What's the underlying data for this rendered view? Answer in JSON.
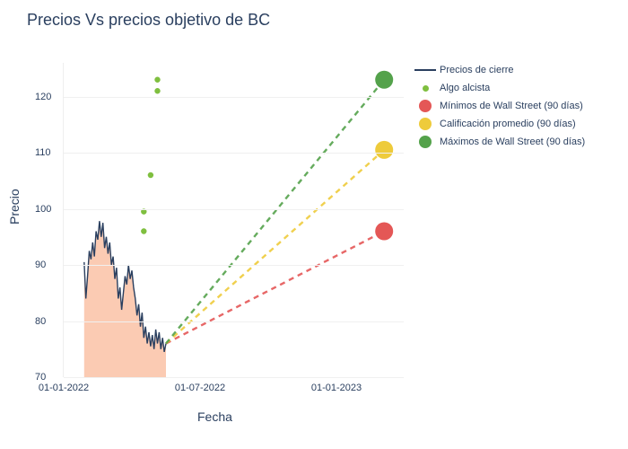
{
  "title": "Precios Vs precios objetivo de BC",
  "ylabel": "Precio",
  "xlabel": "Fecha",
  "chart": {
    "type": "line+scatter+area",
    "ylim": [
      70,
      126
    ],
    "yticks": [
      70,
      80,
      90,
      100,
      110,
      120
    ],
    "xticks": [
      {
        "label": "01-01-2022",
        "t": 0.0
      },
      {
        "label": "01-07-2022",
        "t": 0.4
      },
      {
        "label": "01-01-2023",
        "t": 0.8
      }
    ],
    "colors": {
      "close_line": "#2a3f5f",
      "area_fill": "#f9b99a",
      "area_opacity": 0.75,
      "algo_dot": "#7fbf3f",
      "min_target": "#e45756",
      "avg_target": "#eecb3b",
      "max_target": "#54a24b",
      "dash_opacity": 0.9
    },
    "styling": {
      "close_line_width": 1.4,
      "dash_line_width": 2.4,
      "dash_pattern": "6,5",
      "target_dot_radius": 10,
      "algo_dot_radius": 3.2
    },
    "close_series": [
      {
        "t": 0.06,
        "y": 90.5
      },
      {
        "t": 0.065,
        "y": 84.0
      },
      {
        "t": 0.07,
        "y": 88.0
      },
      {
        "t": 0.075,
        "y": 92.5
      },
      {
        "t": 0.08,
        "y": 91.0
      },
      {
        "t": 0.085,
        "y": 94.0
      },
      {
        "t": 0.09,
        "y": 91.5
      },
      {
        "t": 0.095,
        "y": 96.0
      },
      {
        "t": 0.1,
        "y": 94.5
      },
      {
        "t": 0.105,
        "y": 97.8
      },
      {
        "t": 0.11,
        "y": 95.0
      },
      {
        "t": 0.115,
        "y": 97.5
      },
      {
        "t": 0.12,
        "y": 93.0
      },
      {
        "t": 0.125,
        "y": 95.0
      },
      {
        "t": 0.13,
        "y": 92.0
      },
      {
        "t": 0.135,
        "y": 94.0
      },
      {
        "t": 0.14,
        "y": 90.0
      },
      {
        "t": 0.145,
        "y": 91.5
      },
      {
        "t": 0.15,
        "y": 87.5
      },
      {
        "t": 0.155,
        "y": 89.5
      },
      {
        "t": 0.16,
        "y": 84.0
      },
      {
        "t": 0.165,
        "y": 86.0
      },
      {
        "t": 0.17,
        "y": 82.0
      },
      {
        "t": 0.175,
        "y": 85.0
      },
      {
        "t": 0.18,
        "y": 88.0
      },
      {
        "t": 0.185,
        "y": 86.5
      },
      {
        "t": 0.19,
        "y": 90.0
      },
      {
        "t": 0.195,
        "y": 87.5
      },
      {
        "t": 0.2,
        "y": 89.0
      },
      {
        "t": 0.205,
        "y": 86.0
      },
      {
        "t": 0.21,
        "y": 84.0
      },
      {
        "t": 0.215,
        "y": 81.0
      },
      {
        "t": 0.22,
        "y": 83.0
      },
      {
        "t": 0.225,
        "y": 79.0
      },
      {
        "t": 0.23,
        "y": 81.5
      },
      {
        "t": 0.235,
        "y": 77.0
      },
      {
        "t": 0.24,
        "y": 79.0
      },
      {
        "t": 0.245,
        "y": 76.0
      },
      {
        "t": 0.25,
        "y": 78.0
      },
      {
        "t": 0.255,
        "y": 75.5
      },
      {
        "t": 0.26,
        "y": 77.5
      },
      {
        "t": 0.265,
        "y": 75.0
      },
      {
        "t": 0.27,
        "y": 78.5
      },
      {
        "t": 0.275,
        "y": 76.0
      },
      {
        "t": 0.28,
        "y": 78.0
      },
      {
        "t": 0.285,
        "y": 75.0
      },
      {
        "t": 0.29,
        "y": 77.0
      },
      {
        "t": 0.295,
        "y": 74.5
      },
      {
        "t": 0.3,
        "y": 76.0
      }
    ],
    "algo_points": [
      {
        "t": 0.235,
        "y": 96.0
      },
      {
        "t": 0.235,
        "y": 99.5
      },
      {
        "t": 0.255,
        "y": 106.0
      },
      {
        "t": 0.275,
        "y": 121.0
      },
      {
        "t": 0.275,
        "y": 123.0
      }
    ],
    "proj_start": {
      "t": 0.3,
      "y": 76.0
    },
    "targets": {
      "min": {
        "t": 0.94,
        "y": 96.0
      },
      "avg": {
        "t": 0.94,
        "y": 110.5
      },
      "max": {
        "t": 0.94,
        "y": 123.0
      }
    }
  },
  "legend": {
    "items": [
      {
        "kind": "line",
        "label": "Precios de cierre",
        "color": "#2a3f5f"
      },
      {
        "kind": "dot-sm",
        "label": "Algo alcista",
        "color": "#7fbf3f"
      },
      {
        "kind": "dot-lg",
        "label": "Mínimos de Wall Street (90 días)",
        "color": "#e45756"
      },
      {
        "kind": "dot-lg",
        "label": "Calificación promedio (90 días)",
        "color": "#eecb3b"
      },
      {
        "kind": "dot-lg",
        "label": "Máximos de Wall Street (90 días)",
        "color": "#54a24b"
      }
    ]
  }
}
